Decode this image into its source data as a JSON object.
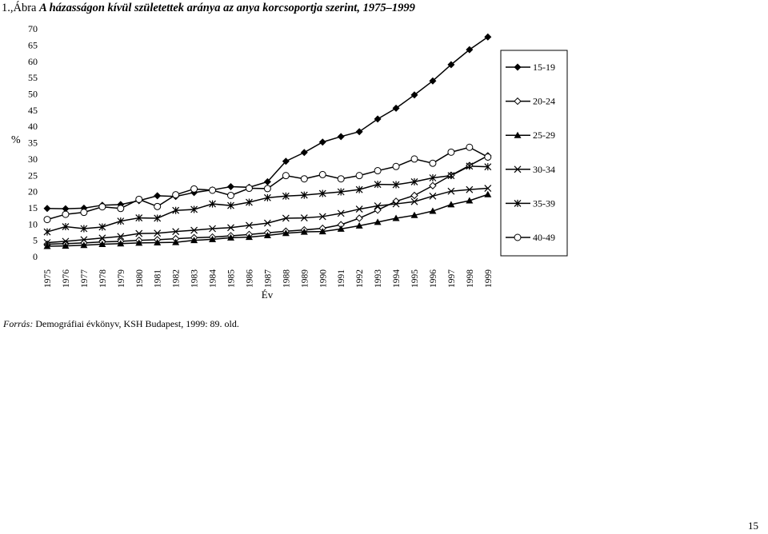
{
  "title": {
    "prefix": "1.,Ábra",
    "text": "A házasságon kívül születettek aránya az anya korcsoportja szerint, 1975–1999"
  },
  "source": {
    "label": "Forrás:",
    "text": "Demográfiai évkönyv, KSH Budapest, 1999: 89. old."
  },
  "page_number": "15",
  "chart_data": {
    "type": "line",
    "title": "",
    "xlabel": "Év",
    "ylabel": "%",
    "ylim": [
      0,
      70
    ],
    "yticks": [
      0,
      5,
      10,
      15,
      20,
      25,
      30,
      35,
      40,
      45,
      50,
      55,
      60,
      65,
      70
    ],
    "grid": false,
    "legend": "right",
    "categories": [
      "1975",
      "1976",
      "1977",
      "1978",
      "1979",
      "1980",
      "1981",
      "1982",
      "1983",
      "1984",
      "1985",
      "1986",
      "1987",
      "1988",
      "1989",
      "1990",
      "1991",
      "1992",
      "1993",
      "1994",
      "1995",
      "1996",
      "1997",
      "1998",
      "1999"
    ],
    "series": [
      {
        "name": "15-19",
        "marker": "diamond-filled",
        "values": [
          14.8,
          14.7,
          14.9,
          15.8,
          16.0,
          17.2,
          18.7,
          18.5,
          19.7,
          20.5,
          21.5,
          21.3,
          23.0,
          29.3,
          32.0,
          35.2,
          36.9,
          38.4,
          42.3,
          45.6,
          49.7,
          54.0,
          59.0,
          63.6,
          67.5
        ]
      },
      {
        "name": "20-24",
        "marker": "diamond-open",
        "values": [
          3.8,
          4.0,
          4.2,
          4.5,
          4.7,
          5.0,
          5.2,
          5.5,
          5.8,
          6.0,
          6.4,
          6.8,
          7.3,
          7.8,
          8.2,
          8.7,
          9.8,
          11.8,
          14.3,
          17.0,
          18.8,
          21.8,
          25.0,
          28.0,
          31.0
        ]
      },
      {
        "name": "25-29",
        "marker": "triangle-filled",
        "values": [
          3.2,
          3.3,
          3.5,
          3.8,
          4.0,
          4.2,
          4.3,
          4.4,
          5.0,
          5.3,
          5.8,
          6.0,
          6.5,
          7.2,
          7.6,
          7.7,
          8.5,
          9.5,
          10.6,
          11.8,
          12.7,
          14.0,
          16.0,
          17.2,
          19.1
        ]
      },
      {
        "name": "30-34",
        "marker": "x",
        "values": [
          4.3,
          4.7,
          5.2,
          5.7,
          6.2,
          7.1,
          7.2,
          7.7,
          8.1,
          8.6,
          8.9,
          9.6,
          10.3,
          11.8,
          11.9,
          12.3,
          13.3,
          14.6,
          15.6,
          16.2,
          16.9,
          18.6,
          20.1,
          20.6,
          21.0
        ]
      },
      {
        "name": "35-39",
        "marker": "asterisk",
        "values": [
          7.6,
          9.2,
          8.6,
          9.1,
          10.9,
          11.9,
          11.8,
          14.2,
          14.5,
          16.2,
          15.7,
          16.7,
          18.1,
          18.6,
          18.9,
          19.4,
          19.9,
          20.6,
          22.2,
          22.1,
          23.0,
          24.2,
          24.9,
          27.8,
          27.6
        ]
      },
      {
        "name": "40-49",
        "marker": "circle-open",
        "values": [
          11.4,
          13.0,
          13.6,
          15.3,
          14.8,
          17.6,
          15.4,
          19.0,
          20.8,
          20.4,
          18.8,
          21.0,
          20.9,
          24.9,
          23.9,
          25.2,
          23.9,
          24.9,
          26.4,
          27.7,
          30.0,
          28.7,
          32.1,
          33.6,
          30.6
        ]
      }
    ]
  }
}
